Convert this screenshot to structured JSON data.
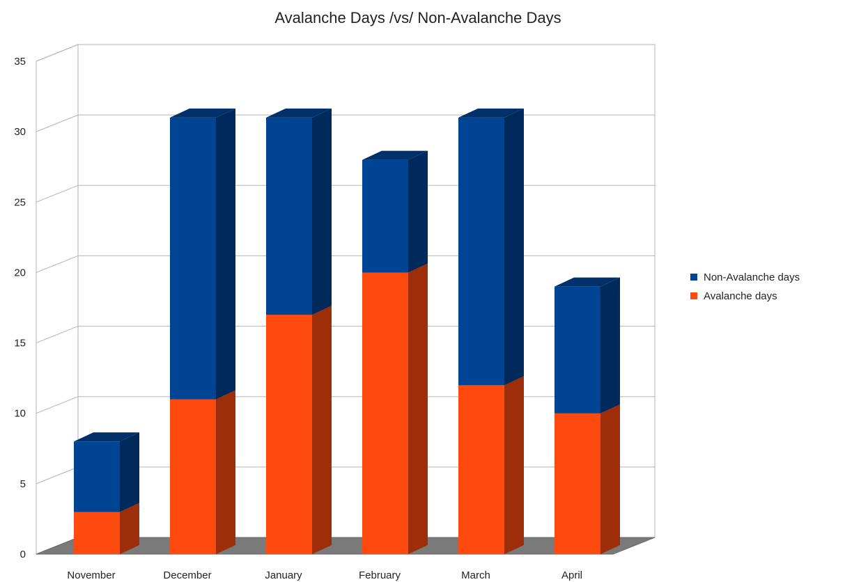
{
  "chart_data": {
    "type": "bar",
    "stacked": true,
    "three_d": true,
    "title": "Avalanche Days /vs/ Non-Avalanche Days",
    "xlabel": "",
    "ylabel": "",
    "categories": [
      "November",
      "December",
      "January",
      "February",
      "March",
      "April"
    ],
    "series": [
      {
        "name": "Avalanche days",
        "values": [
          3,
          11,
          17,
          20,
          12,
          10
        ],
        "color": "#ff4a0f"
      },
      {
        "name": "Non-Avalanche days",
        "values": [
          5,
          20,
          14,
          8,
          19,
          9
        ],
        "color": "#004494"
      }
    ],
    "ylim": [
      0,
      35
    ],
    "yticks": [
      0,
      5,
      10,
      15,
      20,
      25,
      30,
      35
    ],
    "grid": true,
    "legend": "right",
    "legend_order": [
      "Non-Avalanche days",
      "Avalanche days"
    ]
  }
}
